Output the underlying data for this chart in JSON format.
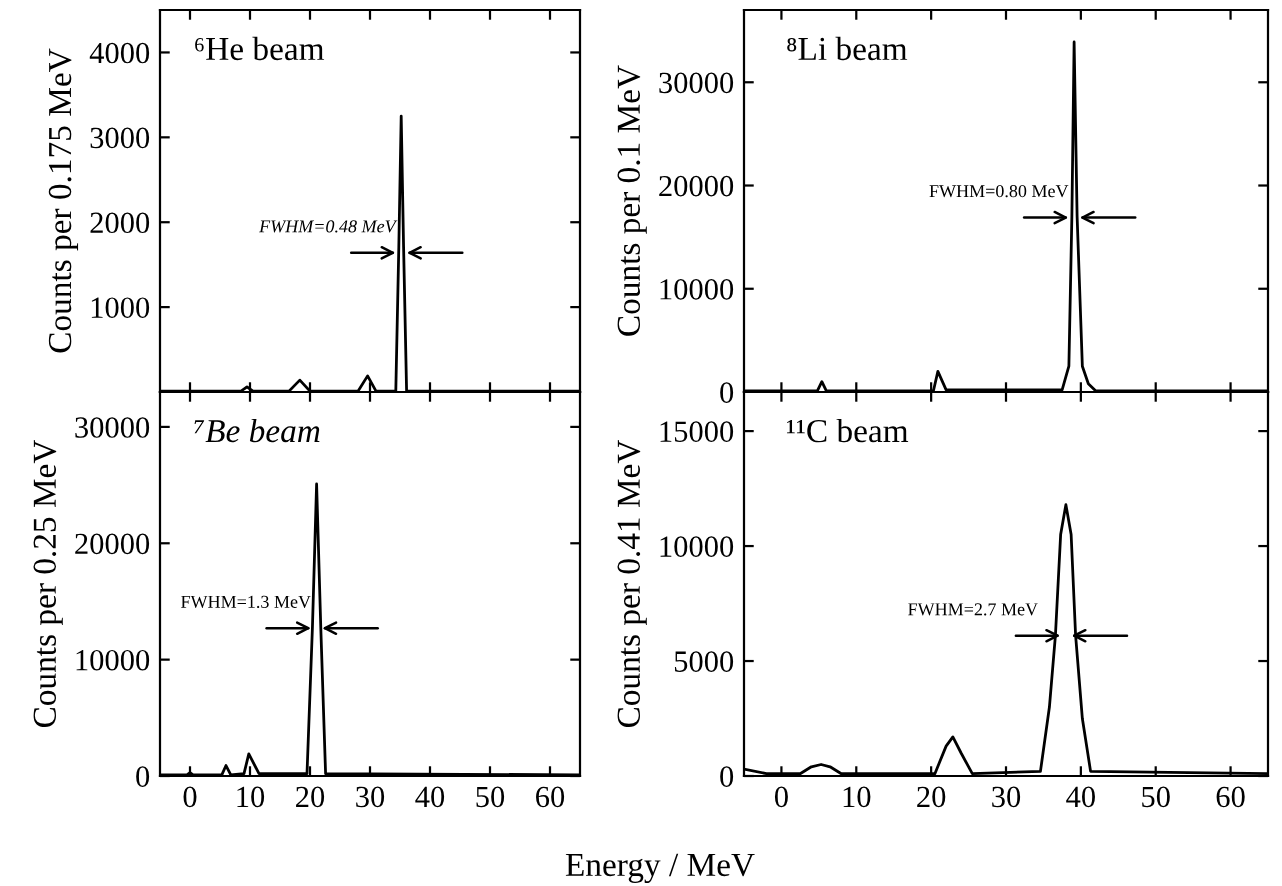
{
  "chart_data": [
    {
      "type": "line",
      "title": "⁶He beam",
      "ylabel": "Counts per 0.175 MeV",
      "xlim": [
        -5,
        65
      ],
      "xticks": [
        0,
        10,
        20,
        30,
        40,
        50,
        60
      ],
      "ylim": [
        0,
        4500
      ],
      "yticks": [
        1000,
        2000,
        3000,
        4000
      ],
      "tick_labels": "y",
      "grid": false,
      "legend": false,
      "series": [
        {
          "color": "#000000",
          "x": [
            -5,
            8.5,
            9.5,
            10.5,
            16.5,
            18.3,
            20,
            28,
            29.6,
            31,
            34.3,
            34.8,
            35.2,
            35.6,
            36.1,
            65
          ],
          "values": [
            10,
            10,
            60,
            10,
            10,
            140,
            10,
            10,
            190,
            10,
            10,
            1700,
            3250,
            1700,
            10,
            10
          ]
        }
      ],
      "annotations": [
        {
          "text": "FWHM=0.48 MeV",
          "x": 35.2,
          "y": 1640
        }
      ]
    },
    {
      "type": "line",
      "title": "⁸Li beam",
      "ylabel": "Counts per 0.1 MeV",
      "xlim": [
        -5,
        65
      ],
      "xticks": [
        0,
        10,
        20,
        30,
        40,
        50,
        60
      ],
      "ylim": [
        0,
        37000
      ],
      "yticks": [
        0,
        10000,
        20000,
        30000
      ],
      "tick_labels": "y",
      "grid": false,
      "legend": false,
      "series": [
        {
          "color": "#000000",
          "x": [
            -5,
            4.8,
            5.4,
            6,
            20.3,
            20.9,
            22,
            37.5,
            38.4,
            38.8,
            39.1,
            39.5,
            40.2,
            41,
            42,
            65
          ],
          "values": [
            100,
            100,
            1000,
            100,
            100,
            2000,
            200,
            200,
            2500,
            17000,
            33900,
            17000,
            2500,
            800,
            100,
            100
          ]
        }
      ],
      "annotations": [
        {
          "text": "FWHM=0.80 MeV",
          "x": 39.1,
          "y": 16900
        }
      ]
    },
    {
      "type": "line",
      "title": "⁷Be beam",
      "ylabel": "Counts per 0.25 MeV",
      "xlabel": "Energy / MeV",
      "xlim": [
        -5,
        65
      ],
      "xticks": [
        0,
        10,
        20,
        30,
        40,
        50,
        60
      ],
      "ylim": [
        0,
        33000
      ],
      "yticks": [
        0,
        10000,
        20000,
        30000
      ],
      "grid": false,
      "legend": false,
      "series": [
        {
          "color": "#000000",
          "x": [
            -5,
            -0.5,
            0,
            0.5,
            5.3,
            6.0,
            6.8,
            9,
            9.8,
            11.5,
            19.5,
            20.4,
            21.1,
            21.8,
            22.6,
            65
          ],
          "values": [
            100,
            100,
            300,
            100,
            100,
            900,
            100,
            200,
            1900,
            200,
            200,
            12700,
            25100,
            12700,
            200,
            100
          ]
        }
      ],
      "annotations": [
        {
          "text": "FWHM=1.3 MeV",
          "x": 21.1,
          "y": 12700
        }
      ]
    },
    {
      "type": "line",
      "title": "¹¹C beam",
      "ylabel": "Counts per 0.41 MeV",
      "xlim": [
        -5,
        65
      ],
      "xticks": [
        0,
        10,
        20,
        30,
        40,
        50,
        60
      ],
      "ylim": [
        0,
        16700
      ],
      "yticks": [
        0,
        5000,
        10000,
        15000
      ],
      "grid": false,
      "legend": false,
      "series": [
        {
          "color": "#000000",
          "x": [
            -5,
            -2,
            2.5,
            4,
            5.3,
            6.5,
            8,
            16,
            20.5,
            22,
            22.9,
            24,
            25.5,
            34.6,
            35.8,
            36.6,
            37.3,
            38,
            38.7,
            39.3,
            40.2,
            41.3,
            65
          ],
          "values": [
            300,
            100,
            100,
            400,
            500,
            400,
            100,
            100,
            100,
            1300,
            1700,
            1000,
            100,
            200,
            3000,
            6100,
            10500,
            11800,
            10500,
            6100,
            2500,
            200,
            100
          ]
        }
      ],
      "annotations": [
        {
          "text": "FWHM=2.7 MeV",
          "x": 38,
          "y": 6100
        }
      ]
    }
  ]
}
